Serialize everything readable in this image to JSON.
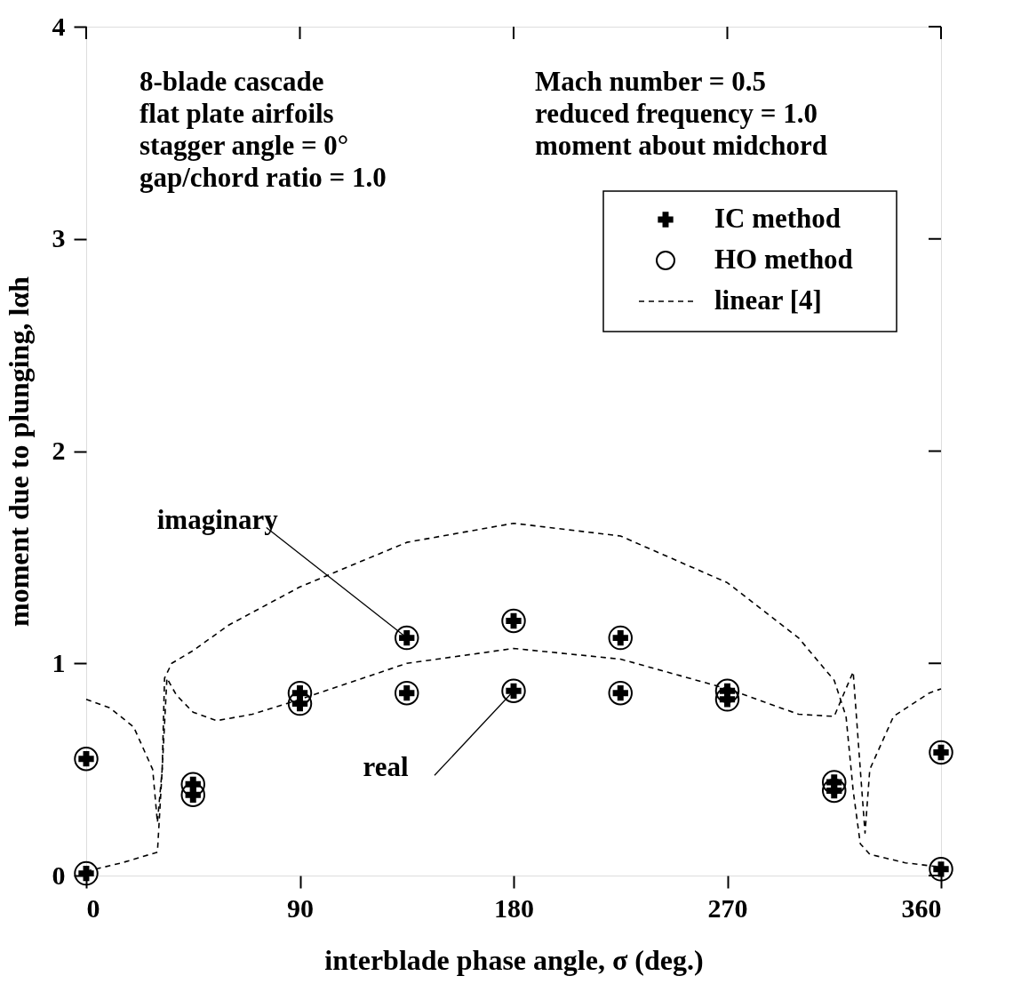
{
  "chart_data": {
    "type": "scatter",
    "xlabel": "interblade phase angle,  σ (deg.)",
    "ylabel": "moment due to plunging,  lαh",
    "xlim": [
      0,
      360
    ],
    "ylim": [
      0,
      4
    ],
    "xticks": [
      0,
      90,
      180,
      270,
      360
    ],
    "yticks": [
      0,
      1,
      2,
      3,
      4
    ],
    "grid": false,
    "legend": "top right",
    "annotations": [
      "8-blade cascade\nflat plate airfoils\nstagger angle = 0°\ngap/chord ratio = 1.0",
      "Mach number = 0.5\nreduced frequency = 1.0\nmoment about midchord",
      {
        "text": "imaginary",
        "x": 135,
        "y": 1.12
      },
      {
        "text": "real",
        "x": 180,
        "y": 0.87
      }
    ],
    "series": [
      {
        "name": "IC method",
        "marker": "cross",
        "color": "#000000",
        "x": [
          0,
          0,
          45,
          45,
          90,
          90,
          135,
          135,
          180,
          180,
          225,
          225,
          270,
          270,
          315,
          315,
          360,
          360
        ],
        "values": [
          0.55,
          0.01,
          0.43,
          0.38,
          0.86,
          0.81,
          1.12,
          0.86,
          1.2,
          0.87,
          1.12,
          0.86,
          0.87,
          0.83,
          0.44,
          0.4,
          0.58,
          0.03
        ]
      },
      {
        "name": "HO method",
        "marker": "circle",
        "color": "#000000",
        "x": [
          0,
          0,
          45,
          45,
          90,
          90,
          135,
          135,
          180,
          180,
          225,
          225,
          270,
          270,
          315,
          315,
          360,
          360
        ],
        "values": [
          0.55,
          0.01,
          0.43,
          0.38,
          0.86,
          0.81,
          1.12,
          0.86,
          1.2,
          0.87,
          1.12,
          0.86,
          0.87,
          0.83,
          0.44,
          0.4,
          0.58,
          0.03
        ]
      },
      {
        "name": "linear [4]",
        "type": "line",
        "line_style": "dashed",
        "color": "#000000",
        "x": [
          0,
          10,
          20,
          28,
          30,
          32,
          34,
          38,
          45,
          55,
          70,
          90,
          135,
          180,
          225,
          270,
          300,
          315,
          323,
          326,
          328,
          330,
          340,
          355,
          360
        ],
        "values": [
          0.83,
          0.79,
          0.7,
          0.5,
          0.25,
          0.5,
          0.93,
          0.85,
          0.77,
          0.73,
          0.76,
          0.83,
          1.0,
          1.07,
          1.02,
          0.88,
          0.76,
          0.75,
          0.96,
          0.5,
          0.2,
          0.5,
          0.75,
          0.86,
          0.88
        ]
      },
      {
        "type": "line",
        "line_style": "dashed",
        "color": "#000000",
        "x": [
          0,
          15,
          30,
          32,
          33,
          36,
          45,
          60,
          90,
          135,
          180,
          225,
          270,
          300,
          315,
          320,
          323,
          326,
          330,
          345,
          360
        ],
        "values": [
          0.02,
          0.06,
          0.11,
          0.5,
          0.93,
          1.0,
          1.06,
          1.18,
          1.36,
          1.57,
          1.66,
          1.6,
          1.38,
          1.12,
          0.92,
          0.75,
          0.4,
          0.15,
          0.1,
          0.06,
          0.04
        ]
      }
    ]
  }
}
